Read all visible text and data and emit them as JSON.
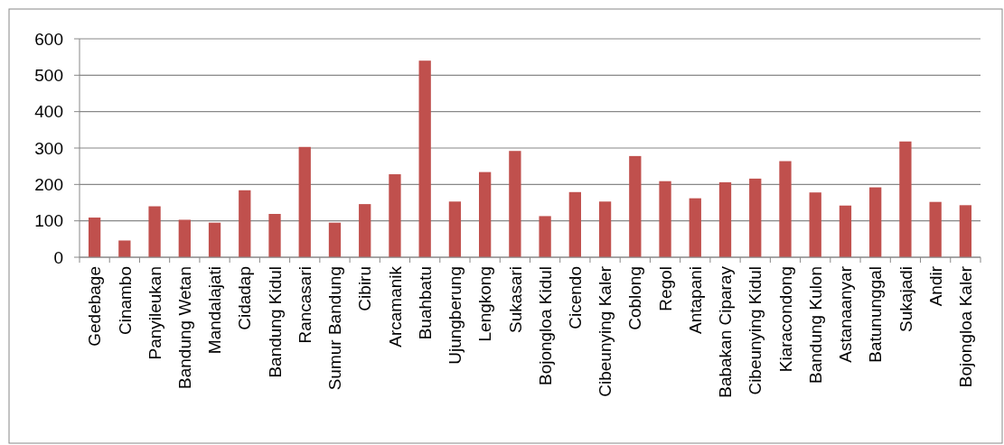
{
  "chart_data": {
    "type": "bar",
    "categories": [
      "Gedebage",
      "Cinambo",
      "Panyileukan",
      "Bandung Wetan",
      "Mandalajati",
      "Cidadap",
      "Bandung Kidul",
      "Rancasari",
      "Sumur Bandung",
      "Cibiru",
      "Arcamanik",
      "Buahbatu",
      "Ujungberung",
      "Lengkong",
      "Sukasari",
      "Bojongloa Kidul",
      "Cicendo",
      "Cibeunying Kaler",
      "Coblong",
      "Regol",
      "Antapani",
      "Babakan Ciparay",
      "Cibeunying Kidul",
      "Kiaracondong",
      "Bandung Kulon",
      "Astanaanyar",
      "Batununggal",
      "Sukajadi",
      "Andir",
      "Bojongloa Kaler"
    ],
    "values": [
      109,
      46,
      140,
      103,
      95,
      184,
      119,
      303,
      95,
      146,
      228,
      540,
      153,
      234,
      292,
      113,
      179,
      153,
      278,
      209,
      162,
      206,
      216,
      264,
      178,
      142,
      192,
      318,
      152,
      143
    ],
    "color": "#c0504d",
    "ylim": [
      0,
      600
    ],
    "yticks": [
      0,
      100,
      200,
      300,
      400,
      500,
      600
    ],
    "grid": "y"
  }
}
